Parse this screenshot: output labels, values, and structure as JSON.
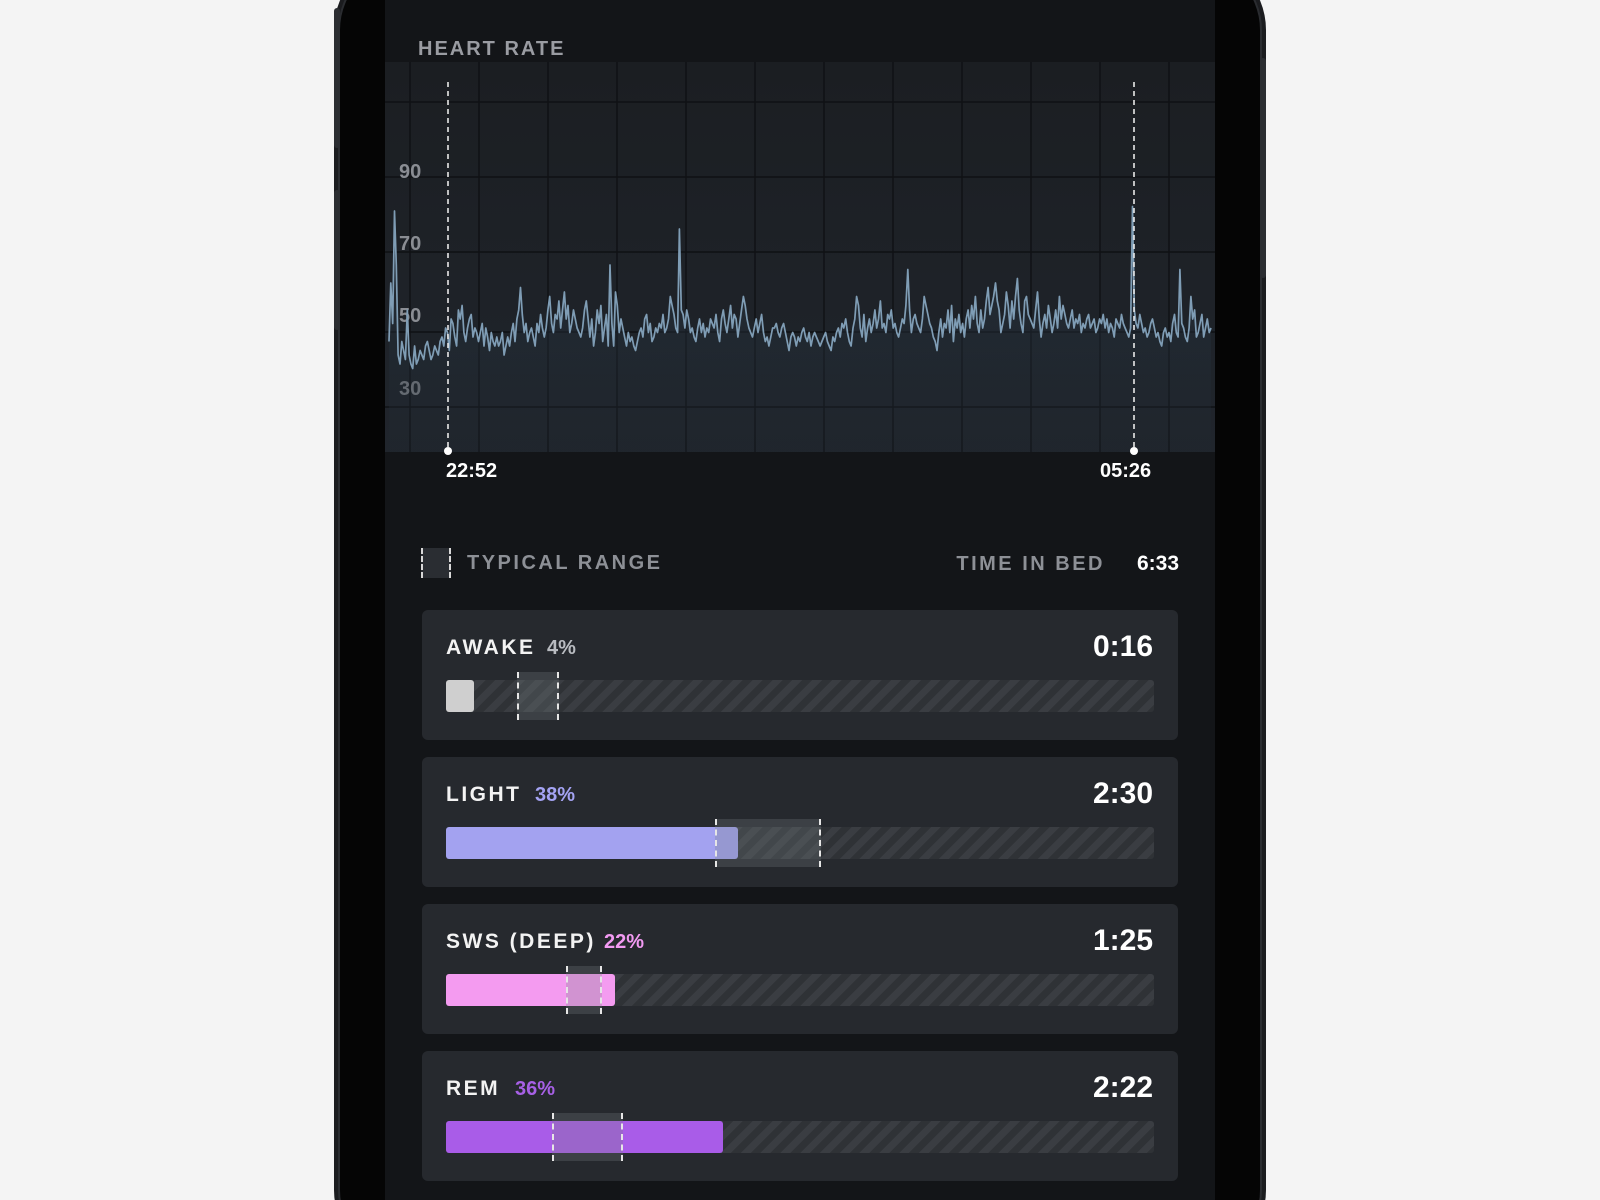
{
  "heart_rate": {
    "title": "HEART RATE",
    "y_ticks": [
      "90",
      "70",
      "50",
      "30"
    ],
    "start_time": "22:52",
    "end_time": "05:26",
    "line_color": "#7f9db5"
  },
  "chart_data": {
    "type": "line",
    "title": "HEART RATE",
    "ylim": [
      20,
      100
    ],
    "y_ticks": [
      90,
      70,
      50,
      30
    ],
    "x_labels": [
      "22:52",
      "05:26"
    ],
    "grid": true,
    "series": [
      {
        "values": [
          45,
          58,
          49,
          74,
          62,
          42,
          40,
          45,
          43,
          41,
          52,
          42,
          40,
          39,
          44,
          40,
          41,
          43,
          42,
          41,
          44,
          45,
          43,
          41,
          42,
          44,
          43,
          42,
          45,
          46,
          44,
          48,
          47,
          43,
          50,
          49,
          46,
          44,
          52,
          50,
          53,
          47,
          45,
          48,
          50,
          51,
          46,
          48,
          47,
          45,
          47,
          49,
          44,
          48,
          46,
          43,
          47,
          45,
          44,
          46,
          44,
          45,
          47,
          42,
          44,
          46,
          44,
          47,
          49,
          45,
          50,
          52,
          57,
          51,
          47,
          49,
          45,
          47,
          48,
          46,
          44,
          49,
          47,
          51,
          48,
          46,
          48,
          52,
          55,
          49,
          47,
          51,
          50,
          54,
          48,
          52,
          56,
          50,
          53,
          47,
          49,
          52,
          50,
          48,
          47,
          46,
          48,
          52,
          54,
          50,
          46,
          50,
          44,
          47,
          52,
          49,
          53,
          45,
          48,
          51,
          44,
          62,
          49,
          44,
          56,
          53,
          47,
          50,
          48,
          46,
          44,
          47,
          45,
          46,
          44,
          43,
          45,
          47,
          48,
          46,
          50,
          51,
          47,
          49,
          45,
          46,
          48,
          47,
          49,
          48,
          51,
          47,
          48,
          50,
          55,
          53,
          51,
          48,
          47,
          70,
          52,
          51,
          48,
          52,
          50,
          47,
          48,
          46,
          45,
          48,
          50,
          47,
          49,
          46,
          48,
          47,
          50,
          49,
          48,
          51,
          47,
          45,
          50,
          52,
          49,
          47,
          50,
          53,
          48,
          51,
          50,
          46,
          49,
          52,
          55,
          53,
          50,
          48,
          47,
          46,
          48,
          50,
          47,
          49,
          51,
          47,
          45,
          46,
          44,
          46,
          48,
          48,
          49,
          47,
          46,
          48,
          49,
          47,
          45,
          43,
          46,
          47,
          46,
          44,
          46,
          45,
          47,
          48,
          46,
          45,
          47,
          44,
          46,
          47,
          46,
          45,
          44,
          45,
          46,
          47,
          45,
          44,
          43,
          46,
          45,
          47,
          48,
          46,
          49,
          48,
          50,
          47,
          45,
          44,
          48,
          50,
          55,
          53,
          48,
          46,
          51,
          45,
          48,
          50,
          47,
          49,
          52,
          48,
          50,
          54,
          48,
          49,
          47,
          51,
          50,
          52,
          48,
          49,
          47,
          46,
          48,
          50,
          49,
          53,
          61,
          52,
          47,
          50,
          51,
          49,
          48,
          47,
          50,
          55,
          53,
          51,
          49,
          48,
          46,
          45,
          43,
          47,
          50,
          46,
          49,
          48,
          52,
          47,
          53,
          45,
          50,
          48,
          51,
          47,
          49,
          46,
          50,
          52,
          48,
          53,
          50,
          55,
          49,
          47,
          52,
          48,
          50,
          54,
          57,
          51,
          53,
          55,
          58,
          54,
          52,
          47,
          49,
          51,
          56,
          53,
          48,
          54,
          50,
          55,
          59,
          52,
          49,
          47,
          54,
          55,
          51,
          50,
          49,
          48,
          52,
          56,
          50,
          46,
          49,
          51,
          48,
          53,
          50,
          47,
          49,
          52,
          48,
          55,
          50,
          53,
          51,
          49,
          48,
          50,
          52,
          48,
          50,
          49,
          51,
          47,
          49,
          48,
          50,
          51,
          48,
          49,
          50,
          47,
          48,
          50,
          49,
          51,
          48,
          50,
          47,
          49,
          48,
          46,
          50,
          49,
          48,
          51,
          49,
          48,
          47,
          46,
          48,
          75,
          52,
          49,
          48,
          51,
          49,
          47,
          48,
          46,
          47,
          49,
          50,
          48,
          46,
          47,
          45,
          44,
          47,
          48,
          46,
          47,
          45,
          49,
          51,
          47,
          46,
          61,
          49,
          48,
          46,
          45,
          48,
          55,
          50,
          52,
          46,
          47,
          49,
          51,
          46,
          48,
          50,
          47,
          48
        ]
      }
    ]
  },
  "legend": {
    "typical_range_label": "TYPICAL RANGE",
    "time_in_bed_label": "TIME IN BED",
    "time_in_bed_value": "6:33"
  },
  "stages": [
    {
      "name": "AWAKE",
      "pct": "4%",
      "time": "0:16",
      "fraction": 0.04,
      "typical_low": 0.1,
      "typical_high": 0.16,
      "color": "#cfcfcf",
      "pct_color": "#b9bcc1"
    },
    {
      "name": "LIGHT",
      "pct": "38%",
      "time": "2:30",
      "fraction": 0.38,
      "typical_low": 0.38,
      "typical_high": 0.53,
      "color": "#a3a2f0",
      "pct_color": "#a4a3f3"
    },
    {
      "name": "SWS (DEEP)",
      "pct": "22%",
      "time": "1:25",
      "fraction": 0.22,
      "typical_low": 0.17,
      "typical_high": 0.22,
      "color": "#f49bf0",
      "pct_color": "#f29af2"
    },
    {
      "name": "REM",
      "pct": "36%",
      "time": "2:22",
      "fraction": 0.36,
      "typical_low": 0.15,
      "typical_high": 0.25,
      "color": "#a95ce8",
      "pct_color": "#a760e6"
    }
  ]
}
